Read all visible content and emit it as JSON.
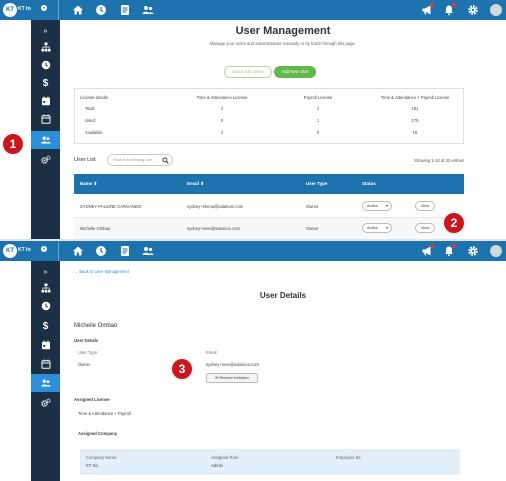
{
  "app": {
    "logo_text": "KT",
    "org_name": "KT Inc.",
    "avatar_text": "..."
  },
  "markers": [
    "1",
    "2",
    "3"
  ],
  "user_management": {
    "title": "User Management",
    "subtitle": "Manage your users and administrators manually or by batch through this page.",
    "batch_add_label": "Batch Add Users",
    "add_new_label": "Add New User",
    "license": {
      "header": "License details",
      "columns": [
        "Time & Attendance License",
        "Payroll License",
        "Time & Attendance + Payroll License"
      ],
      "rows": [
        {
          "label": "Total:",
          "values": [
            "2",
            "1",
            "191"
          ]
        },
        {
          "label": "Used:",
          "values": [
            "0",
            "1",
            "175"
          ]
        },
        {
          "label": "Available:",
          "values": [
            "2",
            "0",
            "16"
          ]
        }
      ]
    },
    "user_list_label": "User List",
    "search_placeholder": "Search an existing user",
    "showing_text": "Showing 1-10 of 22 entries",
    "table_headers": {
      "name": "Name ⬍",
      "email": "Email ⬍",
      "user_type": "User Type",
      "status": "Status"
    },
    "rows": [
      {
        "name": "SYDNEY PAULINE CARGANDO",
        "email": "sydney+shena@salarium.com",
        "user_type": "Owner",
        "status": "Active",
        "action": "View"
      },
      {
        "name": "Michelle Ombao",
        "email": "sydney+mee@salarium.com",
        "user_type": "Owner",
        "status": "Active",
        "action": "View"
      }
    ]
  },
  "user_details": {
    "back_link": "← Back to User Management",
    "title": "User Details",
    "user_name": "Michelle Ombao",
    "section_user_details": "User Details",
    "user_type_label": "User Type:",
    "user_type_value": "Owner",
    "email_label": "Email:",
    "email_value": "sydney+mee@salarium.com",
    "resend_label": "✉ Resend Invitation",
    "assigned_license_label": "Assigned License",
    "assigned_license_value": "Time & Attendance + Payroll",
    "assigned_company_label": "Assigned Company",
    "company_name_label": "Company Name:",
    "company_name_value": "KT Inc.",
    "assigned_role_label": "Assigned Role:",
    "assigned_role_value": "Admin",
    "employee_id_label": "Employee ID:"
  }
}
